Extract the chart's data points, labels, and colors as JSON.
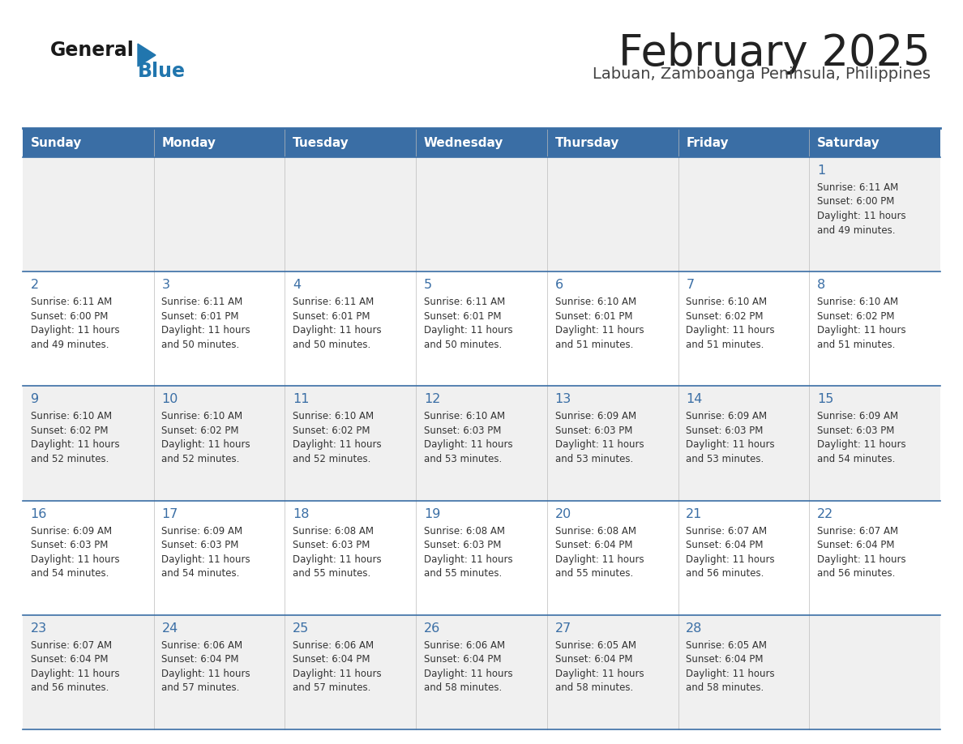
{
  "title": "February 2025",
  "subtitle": "Labuan, Zamboanga Peninsula, Philippines",
  "header_color": "#3a6ea5",
  "header_text_color": "#ffffff",
  "row_alt_color": "#f0f0f0",
  "row_white_color": "#ffffff",
  "border_color": "#3a6ea5",
  "days_of_week": [
    "Sunday",
    "Monday",
    "Tuesday",
    "Wednesday",
    "Thursday",
    "Friday",
    "Saturday"
  ],
  "title_color": "#222222",
  "subtitle_color": "#444444",
  "day_num_color": "#3a6ea5",
  "cell_text_color": "#333333",
  "logo_general_color": "#1a1a1a",
  "logo_blue_color": "#2176ae",
  "logo_triangle_color": "#2176ae",
  "calendar_data": [
    [
      null,
      null,
      null,
      null,
      null,
      null,
      {
        "day": 1,
        "sunrise": "6:11 AM",
        "sunset": "6:00 PM",
        "daylight_hrs": 11,
        "daylight_min": 49
      }
    ],
    [
      {
        "day": 2,
        "sunrise": "6:11 AM",
        "sunset": "6:00 PM",
        "daylight_hrs": 11,
        "daylight_min": 49
      },
      {
        "day": 3,
        "sunrise": "6:11 AM",
        "sunset": "6:01 PM",
        "daylight_hrs": 11,
        "daylight_min": 50
      },
      {
        "day": 4,
        "sunrise": "6:11 AM",
        "sunset": "6:01 PM",
        "daylight_hrs": 11,
        "daylight_min": 50
      },
      {
        "day": 5,
        "sunrise": "6:11 AM",
        "sunset": "6:01 PM",
        "daylight_hrs": 11,
        "daylight_min": 50
      },
      {
        "day": 6,
        "sunrise": "6:10 AM",
        "sunset": "6:01 PM",
        "daylight_hrs": 11,
        "daylight_min": 51
      },
      {
        "day": 7,
        "sunrise": "6:10 AM",
        "sunset": "6:02 PM",
        "daylight_hrs": 11,
        "daylight_min": 51
      },
      {
        "day": 8,
        "sunrise": "6:10 AM",
        "sunset": "6:02 PM",
        "daylight_hrs": 11,
        "daylight_min": 51
      }
    ],
    [
      {
        "day": 9,
        "sunrise": "6:10 AM",
        "sunset": "6:02 PM",
        "daylight_hrs": 11,
        "daylight_min": 52
      },
      {
        "day": 10,
        "sunrise": "6:10 AM",
        "sunset": "6:02 PM",
        "daylight_hrs": 11,
        "daylight_min": 52
      },
      {
        "day": 11,
        "sunrise": "6:10 AM",
        "sunset": "6:02 PM",
        "daylight_hrs": 11,
        "daylight_min": 52
      },
      {
        "day": 12,
        "sunrise": "6:10 AM",
        "sunset": "6:03 PM",
        "daylight_hrs": 11,
        "daylight_min": 53
      },
      {
        "day": 13,
        "sunrise": "6:09 AM",
        "sunset": "6:03 PM",
        "daylight_hrs": 11,
        "daylight_min": 53
      },
      {
        "day": 14,
        "sunrise": "6:09 AM",
        "sunset": "6:03 PM",
        "daylight_hrs": 11,
        "daylight_min": 53
      },
      {
        "day": 15,
        "sunrise": "6:09 AM",
        "sunset": "6:03 PM",
        "daylight_hrs": 11,
        "daylight_min": 54
      }
    ],
    [
      {
        "day": 16,
        "sunrise": "6:09 AM",
        "sunset": "6:03 PM",
        "daylight_hrs": 11,
        "daylight_min": 54
      },
      {
        "day": 17,
        "sunrise": "6:09 AM",
        "sunset": "6:03 PM",
        "daylight_hrs": 11,
        "daylight_min": 54
      },
      {
        "day": 18,
        "sunrise": "6:08 AM",
        "sunset": "6:03 PM",
        "daylight_hrs": 11,
        "daylight_min": 55
      },
      {
        "day": 19,
        "sunrise": "6:08 AM",
        "sunset": "6:03 PM",
        "daylight_hrs": 11,
        "daylight_min": 55
      },
      {
        "day": 20,
        "sunrise": "6:08 AM",
        "sunset": "6:04 PM",
        "daylight_hrs": 11,
        "daylight_min": 55
      },
      {
        "day": 21,
        "sunrise": "6:07 AM",
        "sunset": "6:04 PM",
        "daylight_hrs": 11,
        "daylight_min": 56
      },
      {
        "day": 22,
        "sunrise": "6:07 AM",
        "sunset": "6:04 PM",
        "daylight_hrs": 11,
        "daylight_min": 56
      }
    ],
    [
      {
        "day": 23,
        "sunrise": "6:07 AM",
        "sunset": "6:04 PM",
        "daylight_hrs": 11,
        "daylight_min": 56
      },
      {
        "day": 24,
        "sunrise": "6:06 AM",
        "sunset": "6:04 PM",
        "daylight_hrs": 11,
        "daylight_min": 57
      },
      {
        "day": 25,
        "sunrise": "6:06 AM",
        "sunset": "6:04 PM",
        "daylight_hrs": 11,
        "daylight_min": 57
      },
      {
        "day": 26,
        "sunrise": "6:06 AM",
        "sunset": "6:04 PM",
        "daylight_hrs": 11,
        "daylight_min": 58
      },
      {
        "day": 27,
        "sunrise": "6:05 AM",
        "sunset": "6:04 PM",
        "daylight_hrs": 11,
        "daylight_min": 58
      },
      {
        "day": 28,
        "sunrise": "6:05 AM",
        "sunset": "6:04 PM",
        "daylight_hrs": 11,
        "daylight_min": 58
      },
      null
    ]
  ]
}
